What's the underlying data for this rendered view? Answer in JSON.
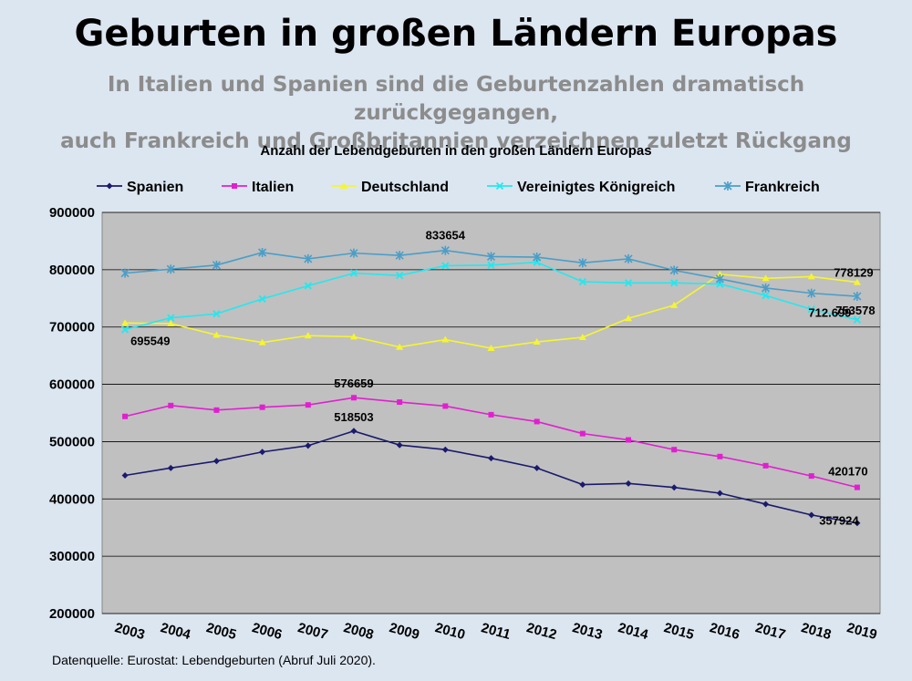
{
  "header": {
    "title": "Geburten in großen Ländern Europas",
    "subtitle_line1": "In Italien und Spanien sind die Geburtenzahlen dramatisch zurückgegangen,",
    "subtitle_line2": "auch Frankreich und Großbritannien verzeichnen zuletzt Rückgang"
  },
  "footer": {
    "source": "Datenquelle: Eurostat: Lebendgeburten (Abruf Juli 2020)."
  },
  "chart_data": {
    "type": "line",
    "title": "Anzahl der Lebendgeburten in den großen Ländern Europas",
    "xlabel": "",
    "ylabel": "",
    "ylim": [
      200000,
      900000
    ],
    "yticks": [
      "900000",
      "800000",
      "700000",
      "600000",
      "500000",
      "400000",
      "300000",
      "200000"
    ],
    "x": [
      "2003",
      "2004",
      "2005",
      "2006",
      "2007",
      "2008",
      "2009",
      "2010",
      "2011",
      "2012",
      "2013",
      "2014",
      "2015",
      "2016",
      "2017",
      "2018",
      "2019"
    ],
    "grid": true,
    "plot_background": "#c0c0c0",
    "legend_position": "top",
    "series": [
      {
        "name": "Spanien",
        "color": "#1a1a6e",
        "marker": "diamond",
        "values": [
          441000,
          454000,
          466000,
          482000,
          493000,
          518503,
          494000,
          486000,
          471000,
          454000,
          425000,
          427000,
          420000,
          410000,
          391000,
          372000,
          357924
        ]
      },
      {
        "name": "Italien",
        "color": "#e020d0",
        "marker": "square",
        "values": [
          544000,
          563000,
          555000,
          560000,
          564000,
          576659,
          569000,
          562000,
          547000,
          535000,
          514000,
          503000,
          486000,
          474000,
          458000,
          440000,
          420170
        ]
      },
      {
        "name": "Deutschland",
        "color": "#f5f530",
        "marker": "triangle",
        "values": [
          707000,
          706000,
          686000,
          673000,
          685000,
          683000,
          665000,
          678000,
          663000,
          674000,
          682000,
          715000,
          738000,
          792000,
          785000,
          788000,
          778129
        ]
      },
      {
        "name": "Vereinigtes Königreich",
        "color": "#22e8f0",
        "marker": "x",
        "values": [
          695549,
          716000,
          723000,
          749000,
          772000,
          794000,
          790000,
          807000,
          808000,
          813000,
          779000,
          777000,
          777000,
          775000,
          755000,
          731000,
          712699
        ]
      },
      {
        "name": "Frankreich",
        "color": "#4a9ec8",
        "marker": "star",
        "values": [
          794000,
          801000,
          808000,
          830000,
          819000,
          829000,
          825000,
          833654,
          823000,
          822000,
          812000,
          819000,
          799000,
          784000,
          768000,
          759000,
          753578
        ]
      }
    ],
    "data_labels": [
      {
        "series": "Frankreich",
        "x": "2010",
        "text": "833654"
      },
      {
        "series": "Deutschland",
        "x": "2019",
        "text": "778129"
      },
      {
        "series": "Frankreich",
        "x": "2019",
        "text": "753578"
      },
      {
        "series": "Vereinigtes Königreich",
        "x": "2019",
        "text": "712.699"
      },
      {
        "series": "Vereinigtes Königreich",
        "x": "2003",
        "text": "695549"
      },
      {
        "series": "Italien",
        "x": "2008",
        "text": "576659"
      },
      {
        "series": "Spanien",
        "x": "2008",
        "text": "518503"
      },
      {
        "series": "Italien",
        "x": "2019",
        "text": "420170"
      },
      {
        "series": "Spanien",
        "x": "2019",
        "text": "357924"
      }
    ]
  }
}
